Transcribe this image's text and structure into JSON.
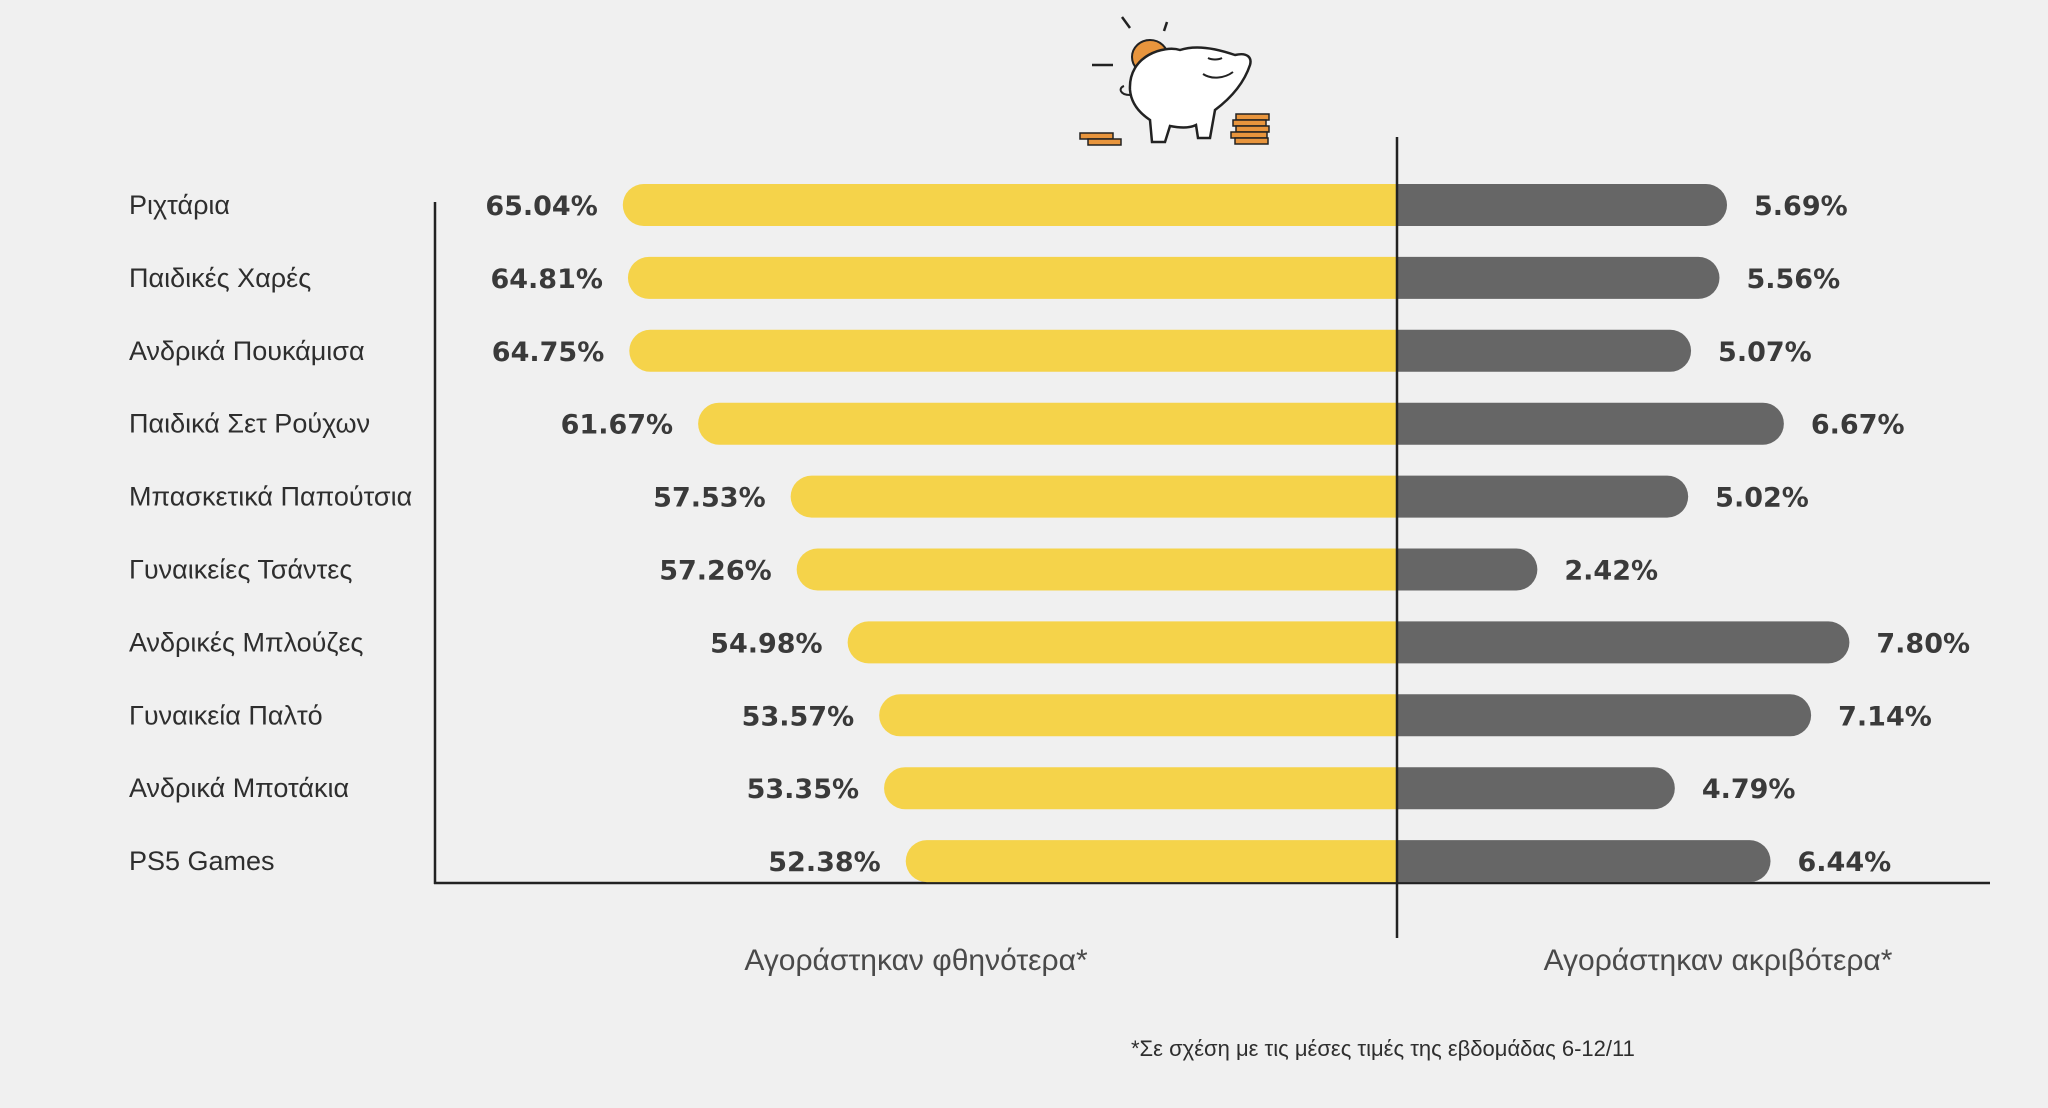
{
  "chart_data": {
    "type": "bar",
    "orientation": "horizontal-diverging",
    "categories": [
      "Ριχτάρια",
      "Παιδικές Χαρές",
      "Ανδρικά Πουκάμισα",
      "Παιδικά Σετ Ρούχων",
      "Μπασκετικά Παπούτσια",
      "Γυναικείες Τσάντες",
      "Ανδρικές Μπλούζες",
      "Γυναικεία Παλτό",
      "Ανδρικά Μποτάκια",
      "PS5 Games"
    ],
    "series": [
      {
        "name": "Αγοράστηκαν φθηνότερα*",
        "color": "#f5d34a",
        "side": "left",
        "values": [
          65.04,
          64.81,
          64.75,
          61.67,
          57.53,
          57.26,
          54.98,
          53.57,
          53.35,
          52.38
        ],
        "labels": [
          "65.04%",
          "64.81%",
          "64.75%",
          "61.67%",
          "57.53%",
          "57.26%",
          "54.98%",
          "53.57%",
          "53.35%",
          "52.38%"
        ]
      },
      {
        "name": "Αγοράστηκαν ακριβότερα*",
        "color": "#666666",
        "side": "right",
        "values": [
          5.69,
          5.56,
          5.07,
          6.67,
          5.02,
          2.42,
          7.8,
          7.14,
          4.79,
          6.44
        ],
        "labels": [
          "5.69%",
          "5.56%",
          "5.07%",
          "6.67%",
          "5.02%",
          "2.42%",
          "7.80%",
          "7.14%",
          "4.79%",
          "6.44%"
        ]
      }
    ],
    "footnote": "*Σε σχέση με τις μέσες τιμές της εβδομάδας 6-12/11",
    "illustration": "piggy-bank-icon",
    "grid": false
  }
}
